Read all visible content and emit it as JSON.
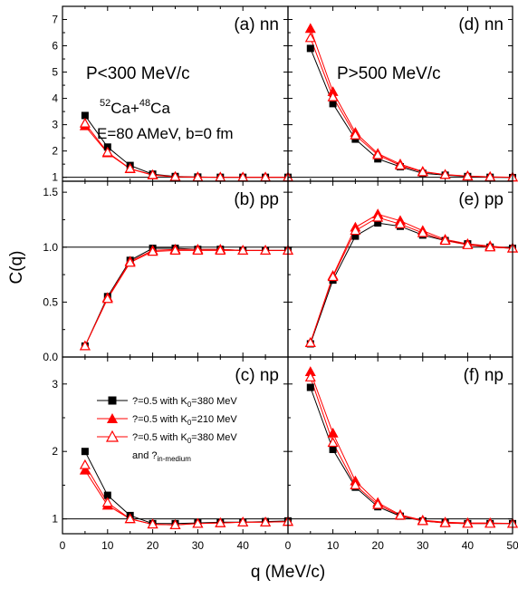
{
  "chart_data": {
    "type": "line",
    "ylabel": "C(q)",
    "xlabel": "q (MeV/c)",
    "annotations": {
      "left_top": "P<300 MeV/c",
      "right_top": "P>500 MeV/c",
      "reaction_sup1": "52",
      "reaction_mid": "Ca+",
      "reaction_sup2": "48",
      "reaction_end": "Ca",
      "conditions": "E=80 AMeV, b=0 fm"
    },
    "legend": [
      {
        "prefix": "?=0.5 with K",
        "sub": "0",
        "suffix": "=380 MeV",
        "color": "#000000",
        "marker": "square-filled"
      },
      {
        "prefix": "?=0.5 with K",
        "sub": "0",
        "suffix": "=210 MeV",
        "color": "#ff0000",
        "marker": "triangle-filled"
      },
      {
        "prefix": "?=0.5 with K",
        "sub": "0",
        "suffix": "=380 MeV",
        "color": "#ff0000",
        "marker": "triangle-open"
      }
    ],
    "legend_extra": {
      "prefix": "and ?",
      "sub": "in-medium"
    },
    "x_ticks_left": [
      "0",
      "10",
      "20",
      "30",
      "40",
      "0"
    ],
    "x_ticks_right": [
      "10",
      "20",
      "30",
      "40",
      "50"
    ],
    "x": [
      5,
      10,
      15,
      20,
      25,
      30,
      35,
      40,
      45,
      50
    ],
    "reference_line": 1,
    "panels": [
      {
        "id": "a",
        "label": "(a) nn",
        "xlim": [
          0,
          50
        ],
        "ylim": [
          0.85,
          7.5
        ],
        "yticks": [
          1,
          2,
          3,
          4,
          5,
          6,
          7
        ],
        "ytick_labels": [
          "1",
          "2",
          "3",
          "4",
          "5",
          "6",
          "7"
        ],
        "series": [
          {
            "name": "K0=380",
            "values": [
              3.35,
              2.15,
              1.45,
              1.12,
              1.03,
              1.01,
              1.0,
              1.0,
              1.0,
              1.0
            ]
          },
          {
            "name": "K0=210",
            "values": [
              2.95,
              1.92,
              1.32,
              1.08,
              1.02,
              1.01,
              1.0,
              1.0,
              1.0,
              1.0
            ]
          },
          {
            "name": "K0=380 in-medium",
            "values": [
              3.05,
              1.95,
              1.33,
              1.09,
              1.02,
              1.0,
              1.0,
              1.0,
              1.0,
              1.0
            ]
          }
        ]
      },
      {
        "id": "d",
        "label": "(d) nn",
        "xlim": [
          0,
          50
        ],
        "ylim": [
          0.85,
          7.5
        ],
        "yticks": [
          1,
          2,
          3,
          4,
          5,
          6,
          7
        ],
        "ytick_labels": [],
        "series": [
          {
            "name": "K0=380",
            "values": [
              5.9,
              3.8,
              2.45,
              1.7,
              1.4,
              1.15,
              1.08,
              1.03,
              1.0,
              0.99
            ]
          },
          {
            "name": "K0=210",
            "values": [
              6.65,
              4.25,
              2.7,
              1.9,
              1.5,
              1.22,
              1.1,
              1.05,
              1.02,
              1.0
            ]
          },
          {
            "name": "K0=380 in-medium",
            "values": [
              6.3,
              4.05,
              2.6,
              1.85,
              1.45,
              1.2,
              1.1,
              1.04,
              1.01,
              1.0
            ]
          }
        ]
      },
      {
        "id": "b",
        "label": "(b) pp",
        "xlim": [
          0,
          50
        ],
        "ylim": [
          0,
          1.6
        ],
        "yticks": [
          0,
          0.5,
          1.0,
          1.5
        ],
        "ytick_labels": [
          "0.0",
          "0.5",
          "1.0",
          "1.5"
        ],
        "series": [
          {
            "name": "K0=380",
            "values": [
              0.1,
              0.55,
              0.88,
              0.99,
              0.99,
              0.98,
              0.98,
              0.97,
              0.97,
              0.97
            ]
          },
          {
            "name": "K0=210",
            "values": [
              0.1,
              0.54,
              0.87,
              0.97,
              0.98,
              0.98,
              0.98,
              0.97,
              0.97,
              0.97
            ]
          },
          {
            "name": "K0=380 in-medium",
            "values": [
              0.1,
              0.53,
              0.86,
              0.96,
              0.97,
              0.97,
              0.97,
              0.97,
              0.97,
              0.97
            ]
          }
        ]
      },
      {
        "id": "e",
        "label": "(e) pp",
        "xlim": [
          0,
          50
        ],
        "ylim": [
          0,
          1.6
        ],
        "yticks": [
          0,
          0.5,
          1.0,
          1.5
        ],
        "ytick_labels": [],
        "series": [
          {
            "name": "K0=380",
            "values": [
              0.12,
              0.7,
              1.1,
              1.22,
              1.19,
              1.11,
              1.06,
              1.03,
              1.0,
              0.99
            ]
          },
          {
            "name": "K0=210",
            "values": [
              0.13,
              0.74,
              1.18,
              1.3,
              1.24,
              1.15,
              1.07,
              1.03,
              1.01,
              0.99
            ]
          },
          {
            "name": "K0=380 in-medium",
            "values": [
              0.13,
              0.73,
              1.15,
              1.27,
              1.21,
              1.13,
              1.06,
              1.02,
              1.0,
              0.99
            ]
          }
        ]
      },
      {
        "id": "c",
        "label": "(c) np",
        "xlim": [
          0,
          50
        ],
        "ylim": [
          0.78,
          3.4
        ],
        "yticks": [
          1,
          2,
          3
        ],
        "ytick_labels": [
          "1",
          "2",
          "3"
        ],
        "series": [
          {
            "name": "K0=380",
            "values": [
              2.0,
              1.35,
              1.05,
              0.93,
              0.93,
              0.94,
              0.95,
              0.95,
              0.96,
              0.97
            ]
          },
          {
            "name": "K0=210",
            "values": [
              1.72,
              1.2,
              1.0,
              0.92,
              0.91,
              0.93,
              0.94,
              0.95,
              0.95,
              0.96
            ]
          },
          {
            "name": "K0=380 in-medium",
            "values": [
              1.8,
              1.24,
              1.0,
              0.92,
              0.91,
              0.93,
              0.94,
              0.95,
              0.95,
              0.96
            ]
          }
        ]
      },
      {
        "id": "f",
        "label": "(f) np",
        "xlim": [
          0,
          50
        ],
        "ylim": [
          0.78,
          3.4
        ],
        "yticks": [
          1,
          2,
          3
        ],
        "ytick_labels": [],
        "series": [
          {
            "name": "K0=380",
            "values": [
              2.95,
              2.03,
              1.47,
              1.18,
              1.04,
              0.97,
              0.94,
              0.93,
              0.93,
              0.93
            ]
          },
          {
            "name": "K0=210",
            "values": [
              3.18,
              2.27,
              1.56,
              1.24,
              1.06,
              0.98,
              0.95,
              0.94,
              0.94,
              0.93
            ]
          },
          {
            "name": "K0=380 in-medium",
            "values": [
              3.1,
              2.13,
              1.5,
              1.21,
              1.05,
              0.97,
              0.94,
              0.93,
              0.93,
              0.93
            ]
          }
        ]
      }
    ]
  }
}
